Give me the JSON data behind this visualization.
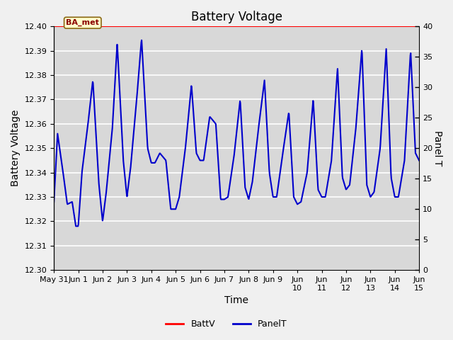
{
  "title": "Battery Voltage",
  "xlabel": "Time",
  "ylabel_left": "Battery Voltage",
  "ylabel_right": "Panel T",
  "ylim_left": [
    12.3,
    12.4
  ],
  "ylim_right": [
    0,
    40
  ],
  "yticks_left": [
    12.3,
    12.31,
    12.32,
    12.33,
    12.34,
    12.35,
    12.36,
    12.37,
    12.38,
    12.39,
    12.4
  ],
  "yticks_right": [
    0,
    5,
    10,
    15,
    20,
    25,
    30,
    35,
    40
  ],
  "xtick_labels": [
    "May 31",
    "Jun 1",
    "Jun 2",
    "Jun 3",
    "Jun 4",
    "Jun 5",
    "Jun 6",
    "Jun 7",
    "Jun 8",
    "Jun 9",
    "Jun\n10",
    "Jun\n11",
    "Jun\n12",
    "Jun\n13",
    "Jun\n14",
    "Jun\n15"
  ],
  "annotation_text": "BA_met",
  "battv_line_color": "#ff0000",
  "panelt_line_color": "#0000cc",
  "fig_bg_color": "#f0f0f0",
  "plot_bg_color": "#d8d8d8",
  "grid_color": "#ffffff",
  "title_fontsize": 12,
  "axis_label_fontsize": 10,
  "tick_fontsize": 8,
  "key_x": [
    0.0,
    0.15,
    0.35,
    0.55,
    0.75,
    0.9,
    1.0,
    1.15,
    1.4,
    1.6,
    1.85,
    2.0,
    2.15,
    2.4,
    2.6,
    2.85,
    3.0,
    3.15,
    3.4,
    3.6,
    3.85,
    4.0,
    4.15,
    4.35,
    4.6,
    4.8,
    5.0,
    5.15,
    5.4,
    5.65,
    5.85,
    6.0,
    6.15,
    6.4,
    6.65,
    6.85,
    7.0,
    7.15,
    7.4,
    7.65,
    7.85,
    8.0,
    8.15,
    8.4,
    8.65,
    8.85,
    9.0,
    9.15,
    9.4,
    9.65,
    9.85,
    10.0,
    10.15,
    10.4,
    10.65,
    10.85,
    11.0,
    11.15,
    11.4,
    11.65,
    11.85,
    12.0,
    12.15,
    12.4,
    12.65,
    12.85,
    13.0,
    13.15,
    13.4,
    13.65,
    13.85,
    14.0,
    14.15,
    14.4,
    14.65,
    14.85,
    15.0
  ],
  "key_y": [
    12.328,
    12.356,
    12.342,
    12.327,
    12.328,
    12.318,
    12.318,
    12.34,
    12.36,
    12.378,
    12.335,
    12.32,
    12.332,
    12.358,
    12.393,
    12.345,
    12.33,
    12.342,
    12.37,
    12.395,
    12.35,
    12.344,
    12.344,
    12.348,
    12.345,
    12.325,
    12.325,
    12.33,
    12.35,
    12.376,
    12.348,
    12.345,
    12.345,
    12.363,
    12.36,
    12.329,
    12.329,
    12.33,
    12.347,
    12.37,
    12.334,
    12.329,
    12.336,
    12.358,
    12.378,
    12.34,
    12.33,
    12.33,
    12.348,
    12.365,
    12.33,
    12.327,
    12.328,
    12.34,
    12.37,
    12.333,
    12.33,
    12.33,
    12.345,
    12.383,
    12.338,
    12.333,
    12.335,
    12.358,
    12.391,
    12.335,
    12.33,
    12.332,
    12.35,
    12.391,
    12.338,
    12.33,
    12.33,
    12.345,
    12.39,
    12.348,
    12.345
  ]
}
